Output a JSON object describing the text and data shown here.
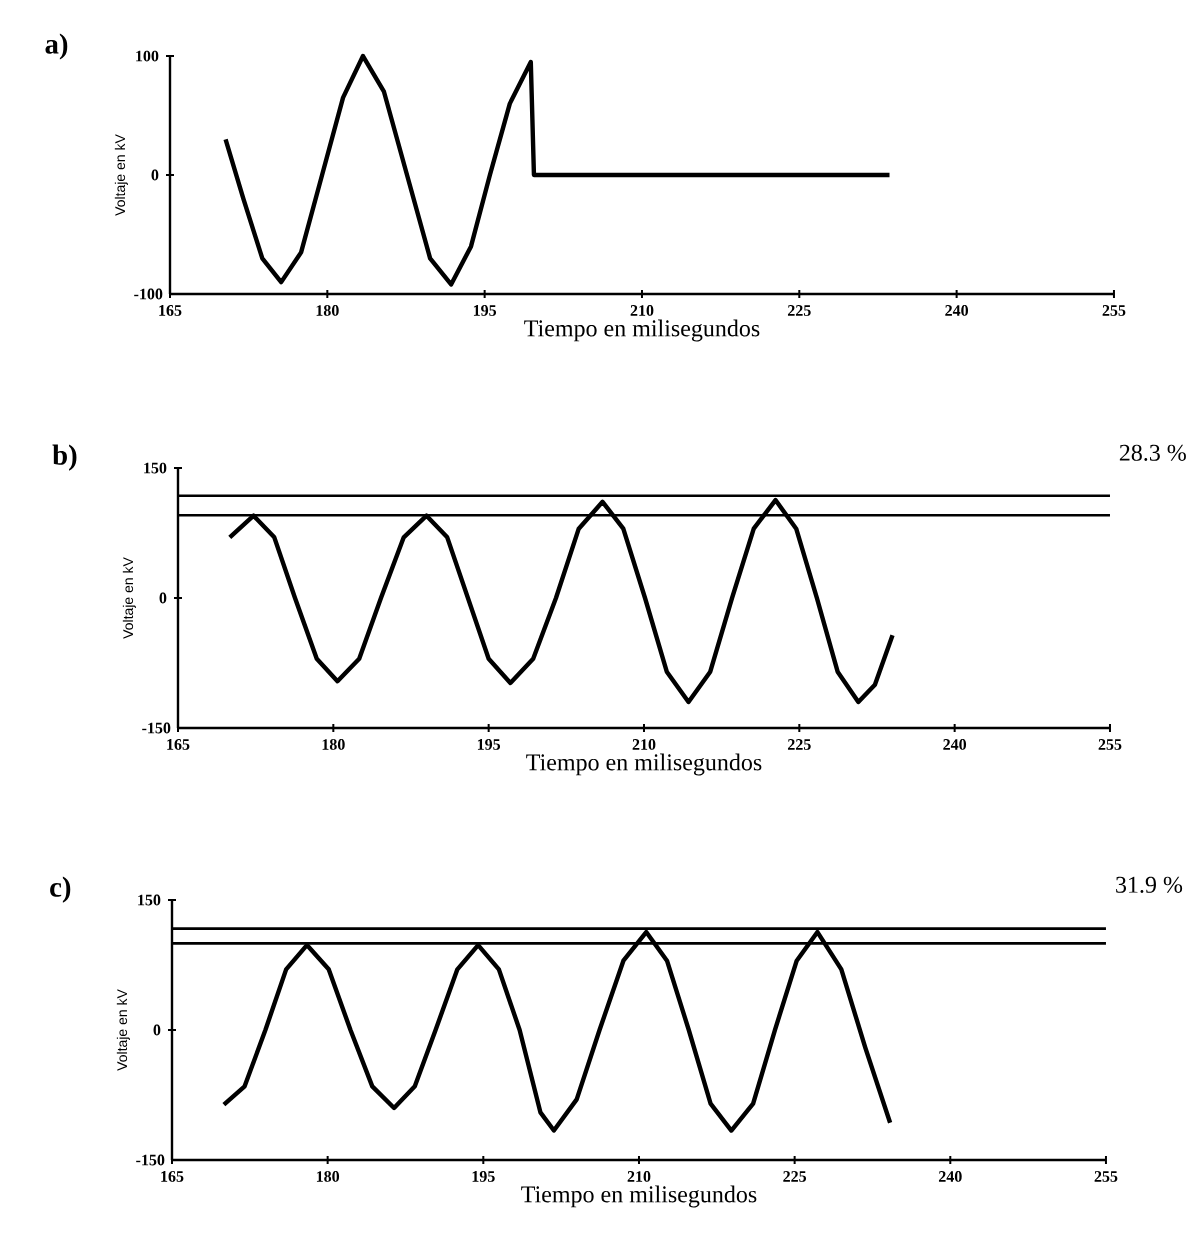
{
  "chart_data": [
    {
      "type": "line",
      "title": "a)",
      "xlabel": "Tiempo en milisegundos",
      "ylabel": "Voltaje en kV",
      "color": "#000000",
      "x": [
        170.3,
        172,
        173.8,
        175.6,
        177.5,
        179.5,
        181.5,
        183.4,
        185.4,
        187.6,
        189.8,
        191.8,
        193.7,
        195.5,
        197.4,
        199.4,
        199.7,
        233.6
      ],
      "values": [
        30,
        -20,
        -70,
        -90,
        -65,
        0,
        65,
        100,
        70,
        0,
        -70,
        -92,
        -60,
        0,
        60,
        95,
        0,
        0
      ],
      "xlim": [
        165,
        255
      ],
      "ylim": [
        -100,
        100
      ],
      "xticks": [
        165,
        180,
        195,
        210,
        225,
        240,
        255
      ],
      "yticks": [
        -100,
        0,
        100
      ]
    },
    {
      "type": "line",
      "title": "b)",
      "xlabel": "Tiempo en milisegundos",
      "ylabel": "Voltaje en kV",
      "color": "#000000",
      "x": [
        170,
        172.3,
        174.3,
        176.3,
        178.4,
        180.4,
        182.5,
        184.6,
        186.8,
        189,
        191,
        193,
        195,
        197.1,
        199.3,
        201.5,
        203.7,
        206,
        208,
        210.1,
        212.2,
        214.3,
        216.4,
        218.5,
        220.6,
        222.7,
        224.7,
        226.7,
        228.7,
        230.7,
        232.3,
        234
      ],
      "values": [
        70,
        95,
        70,
        0,
        -70,
        -96,
        -70,
        0,
        70,
        95,
        70,
        0,
        -70,
        -98,
        -70,
        0,
        80,
        111,
        80,
        0,
        -85,
        -120,
        -85,
        0,
        80,
        113,
        80,
        0,
        -85,
        -120,
        -100,
        -43
      ],
      "xlim": [
        165,
        255
      ],
      "ylim": [
        -150,
        150
      ],
      "xticks": [
        165,
        180,
        195,
        210,
        225,
        240,
        255
      ],
      "yticks": [
        -150,
        0,
        150
      ],
      "ref_lines": [
        {
          "axis": "y",
          "value": 118
        },
        {
          "axis": "y",
          "value": 95.5
        }
      ],
      "annotations": [
        "28.3 %"
      ]
    },
    {
      "type": "line",
      "title": "c)",
      "xlabel": "Tiempo en milisegundos",
      "ylabel": "Voltaje en kV",
      "color": "#000000",
      "x": [
        170,
        172,
        174,
        176,
        178,
        180.1,
        182.2,
        184.3,
        186.4,
        188.4,
        190.4,
        192.5,
        194.5,
        196.5,
        198.5,
        200.5,
        201.8,
        204,
        206.2,
        208.5,
        210.7,
        212.7,
        214.8,
        216.9,
        218.9,
        221,
        223.1,
        225.2,
        227.2,
        229.5,
        231.8,
        234.2
      ],
      "values": [
        -86,
        -65,
        0,
        70,
        98,
        70,
        0,
        -65,
        -90,
        -65,
        0,
        70,
        98,
        70,
        0,
        -95,
        -116,
        -80,
        0,
        80,
        113,
        80,
        0,
        -85,
        -116,
        -85,
        0,
        80,
        113,
        70,
        -20,
        -107
      ],
      "xlim": [
        165,
        255
      ],
      "ylim": [
        -150,
        150
      ],
      "xticks": [
        165,
        180,
        195,
        210,
        225,
        240,
        255
      ],
      "yticks": [
        -150,
        0,
        150
      ],
      "ref_lines": [
        {
          "axis": "y",
          "value": 117
        },
        {
          "axis": "y",
          "value": 100
        }
      ],
      "annotations": [
        "31.9 %"
      ]
    }
  ]
}
